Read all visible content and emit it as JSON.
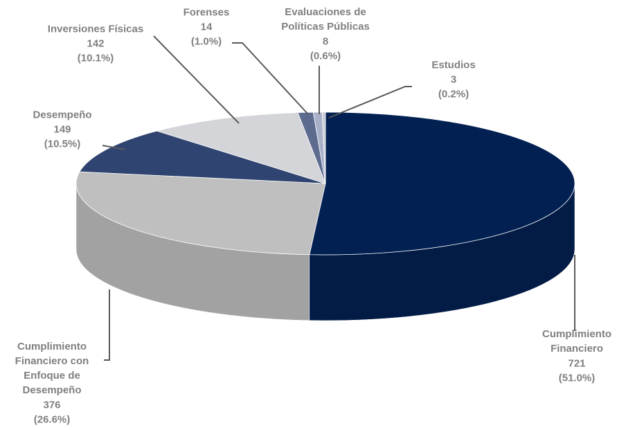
{
  "chart_data": {
    "type": "pie3d",
    "categories": [
      "Cumplimiento\nFinanciero",
      "Cumplimiento\nFinanciero con\nEnfoque de\nDesempeño",
      "Desempeño",
      "Inversiones Físicas",
      "Forenses",
      "Evaluaciones de\nPolíticas Públicas",
      "Estudios"
    ],
    "values": [
      721,
      376,
      149,
      142,
      14,
      8,
      3
    ],
    "percent_labels": [
      "(51.0%)",
      "(26.6%)",
      "(10.5%)",
      "(10.1%)",
      "(1.0%)",
      "(0.6%)",
      "(0.2%)"
    ],
    "colors": [
      "#022152",
      "#bfbfbf",
      "#2f4470",
      "#d4d5d9",
      "#5d6b8f",
      "#a9b1c9",
      "#c9ccd6"
    ]
  }
}
